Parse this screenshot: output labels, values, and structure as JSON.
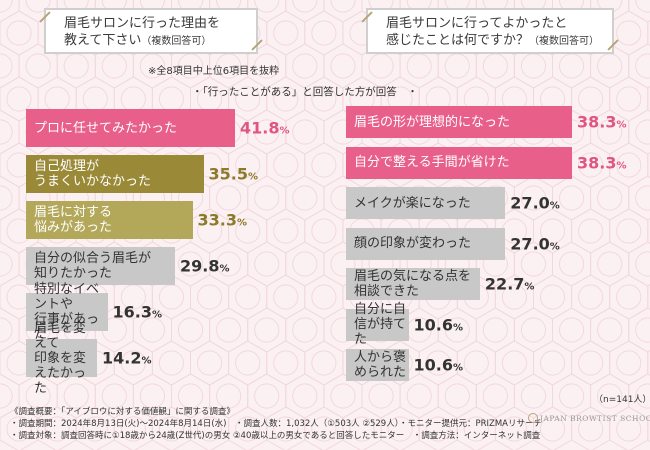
{
  "colors": {
    "pink": "#e85f8a",
    "gold": "#9a8a38",
    "gold_light": "#b3a85a",
    "gray": "#c8c8c8",
    "pattern": "#f3d7de"
  },
  "left_title": {
    "line1": "眉毛サロンに行った理由を",
    "line2": "教えて下さい",
    "suffix": "（複数回答可）"
  },
  "right_title": {
    "line1": "眉毛サロンに行ってよかったと",
    "line2": "感じたことは何ですか？",
    "suffix": "（複数回答可）"
  },
  "note_top": "※全8項目中上位6項目を抜粋",
  "note_respondents": "・「行ったことがある」と回答した方が回答　・",
  "sample_size": "（n=141人）",
  "chart_data": [
    {
      "type": "bar",
      "orientation": "horizontal",
      "categories": [
        "プロに任せてみたかった",
        "自己処理が\nうまくいかなかった",
        "眉毛に対する\n悩みがあった",
        "自分の似合う眉毛が\n知りたかった",
        "特別なイベントや\n行事があった",
        "眉毛を変えて\n印象を変えたかった"
      ],
      "values": [
        41.8,
        35.5,
        33.3,
        29.8,
        16.3,
        14.2
      ],
      "value_int": [
        "41.",
        "35.",
        "33.",
        "29.",
        "16.",
        "14."
      ],
      "value_dec": [
        "8",
        "5",
        "3",
        "8",
        "3",
        "2"
      ],
      "unit": "%",
      "colors": [
        "pink",
        "gold",
        "gold_light",
        "gray",
        "gray",
        "gray"
      ]
    },
    {
      "type": "bar",
      "orientation": "horizontal",
      "categories": [
        "眉毛の形が理想的になった",
        "自分で整える手間が省けた",
        "メイクが楽になった",
        "顔の印象が変わった",
        "眉毛の気になる点を\n相談できた",
        "自分に自信が持てた",
        "人から褒められた"
      ],
      "values": [
        38.3,
        38.3,
        27.0,
        27.0,
        22.7,
        10.6,
        10.6
      ],
      "value_int": [
        "38.",
        "38.",
        "27.",
        "27.",
        "22.",
        "10.",
        "10."
      ],
      "value_dec": [
        "3",
        "3",
        "0",
        "0",
        "7",
        "6",
        "6"
      ],
      "unit": "%",
      "colors": [
        "pink",
        "pink",
        "gray",
        "gray",
        "gray",
        "gray",
        "gray"
      ]
    }
  ],
  "footer": {
    "line1": "《調査概要：「アイブロウに対する価値観」に関する調査》",
    "line2": "・調査期間：2024年8月13日(火)～2024年8月14日(水)　・調査人数：1,032人（①503人 ②529人）・モニター提供元：PRIZMAリサーチ",
    "line3": "・調査対象：調査回答時に①18歳から24歳(Z世代)の男女 ②40歳以上の男女であると回答したモニター　・調査方法：インターネット調査"
  },
  "logo_text": "JAPAN BROWTIST SCHOOL"
}
